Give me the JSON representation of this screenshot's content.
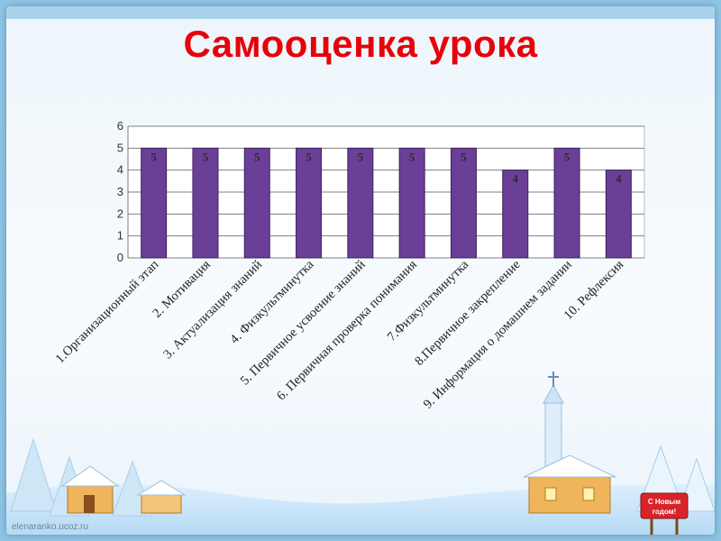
{
  "slide": {
    "title": "Самооценка урока",
    "watermark": "elenaranko.ucoz.ru",
    "sign_text_line1": "С Новым",
    "sign_text_line2": "годом!"
  },
  "chart_data": {
    "type": "bar",
    "categories": [
      "1.Организационный этап",
      "2. Мотивация",
      "3. Актуализация знаний",
      "4. Физкультминутка",
      "5. Первичное усвоение знаний",
      "6. Первичная проверка понимания",
      "7.Физкультминутка",
      "8.Первичное  закрепление",
      "9. Информация о домашнем задании",
      "10. Рефлексия"
    ],
    "values": [
      5,
      5,
      5,
      5,
      5,
      5,
      5,
      4,
      5,
      4
    ],
    "data_labels": [
      "5",
      "5",
      "5",
      "5",
      "5",
      "5",
      "5",
      "4",
      "5",
      "4"
    ],
    "yticks": [
      "0",
      "1",
      "2",
      "3",
      "4",
      "5",
      "6"
    ],
    "ylim": [
      0,
      6
    ],
    "grid": true,
    "legend": "none",
    "bar_color": "#6a3f97",
    "label_color": "#2b2b2b"
  }
}
